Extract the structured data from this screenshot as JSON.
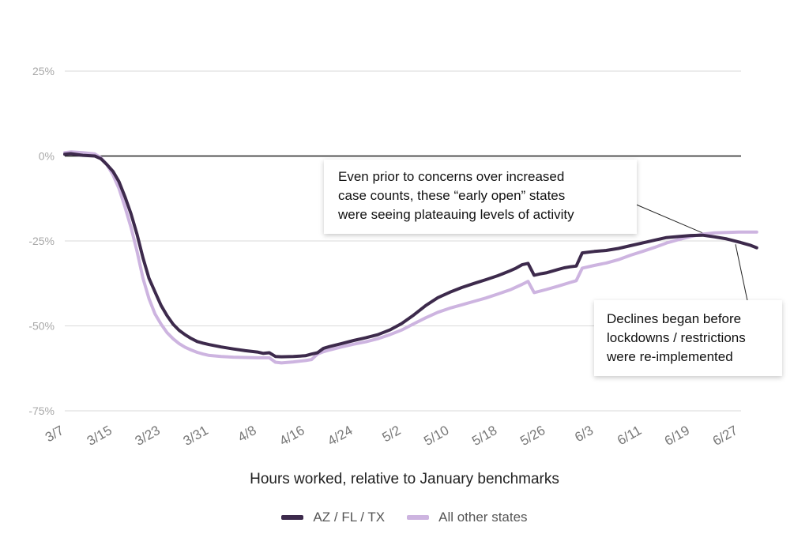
{
  "chart_data": {
    "type": "line",
    "xlabel": "Hours worked, relative to January benchmarks",
    "x_ticks": [
      "3/7",
      "3/15",
      "3/23",
      "3/31",
      "4/8",
      "4/16",
      "4/24",
      "5/2",
      "5/10",
      "5/18",
      "5/26",
      "6/3",
      "6/11",
      "6/19",
      "6/27"
    ],
    "y_ticks": [
      25,
      0,
      -25,
      -50,
      -75
    ],
    "y_tick_labels": [
      "25%",
      "0%",
      "-25%",
      "-50%",
      "-75%"
    ],
    "ylim": [
      -75,
      25
    ],
    "grid": true,
    "legend_position": "bottom",
    "series": [
      {
        "name": "AZ / FL / TX",
        "color": "#3d2a4c",
        "points": [
          [
            0,
            0.5
          ],
          [
            1,
            0.7
          ],
          [
            3,
            0.2
          ],
          [
            5,
            0
          ],
          [
            6,
            -0.8
          ],
          [
            7,
            -2.5
          ],
          [
            8,
            -4.5
          ],
          [
            9,
            -7.5
          ],
          [
            10,
            -12
          ],
          [
            11,
            -17
          ],
          [
            12,
            -23
          ],
          [
            13,
            -30
          ],
          [
            14,
            -36
          ],
          [
            15,
            -40
          ],
          [
            16,
            -44
          ],
          [
            17,
            -47
          ],
          [
            18,
            -49.5
          ],
          [
            19,
            -51.3
          ],
          [
            20,
            -52.6
          ],
          [
            21,
            -53.7
          ],
          [
            22,
            -54.6
          ],
          [
            23,
            -55.1
          ],
          [
            24,
            -55.5
          ],
          [
            26,
            -56.2
          ],
          [
            28,
            -56.8
          ],
          [
            30,
            -57.3
          ],
          [
            32,
            -57.7
          ],
          [
            33,
            -58.1
          ],
          [
            34,
            -57.9
          ],
          [
            35,
            -59
          ],
          [
            36,
            -59.1
          ],
          [
            38,
            -59
          ],
          [
            40,
            -58.8
          ],
          [
            41,
            -58.3
          ],
          [
            42,
            -57.9
          ],
          [
            43,
            -56.6
          ],
          [
            44,
            -56.1
          ],
          [
            46,
            -55.2
          ],
          [
            48,
            -54.3
          ],
          [
            50,
            -53.5
          ],
          [
            52,
            -52.6
          ],
          [
            54,
            -51.2
          ],
          [
            56,
            -49.3
          ],
          [
            58,
            -46.8
          ],
          [
            60,
            -44
          ],
          [
            62,
            -41.7
          ],
          [
            64,
            -40.1
          ],
          [
            66,
            -38.7
          ],
          [
            68,
            -37.5
          ],
          [
            70,
            -36.4
          ],
          [
            72,
            -35.2
          ],
          [
            74,
            -33.8
          ],
          [
            75,
            -33
          ],
          [
            76,
            -32
          ],
          [
            77,
            -31.6
          ],
          [
            78,
            -35.1
          ],
          [
            79,
            -34.7
          ],
          [
            80,
            -34.4
          ],
          [
            82,
            -33.4
          ],
          [
            83,
            -32.9
          ],
          [
            84,
            -32.6
          ],
          [
            85,
            -32.4
          ],
          [
            86,
            -28.5
          ],
          [
            88,
            -28.1
          ],
          [
            90,
            -27.8
          ],
          [
            92,
            -27.2
          ],
          [
            94,
            -26.4
          ],
          [
            96,
            -25.6
          ],
          [
            98,
            -24.8
          ],
          [
            100,
            -24
          ],
          [
            102,
            -23.7
          ],
          [
            104,
            -23.4
          ],
          [
            106,
            -23.3
          ],
          [
            108,
            -23.8
          ],
          [
            110,
            -24.4
          ],
          [
            112,
            -25.3
          ],
          [
            114,
            -26.3
          ],
          [
            115,
            -27
          ]
        ]
      },
      {
        "name": "All other states",
        "color": "#cdb4e0",
        "points": [
          [
            0,
            1
          ],
          [
            1,
            1.2
          ],
          [
            3,
            1
          ],
          [
            5,
            0.6
          ],
          [
            6,
            -0.5
          ],
          [
            7,
            -2.5
          ],
          [
            8,
            -5.5
          ],
          [
            9,
            -9.5
          ],
          [
            10,
            -15
          ],
          [
            11,
            -21
          ],
          [
            12,
            -28
          ],
          [
            13,
            -36
          ],
          [
            14,
            -42
          ],
          [
            15,
            -46.5
          ],
          [
            16,
            -49.5
          ],
          [
            17,
            -52
          ],
          [
            18,
            -53.8
          ],
          [
            19,
            -55.2
          ],
          [
            20,
            -56.3
          ],
          [
            21,
            -57.1
          ],
          [
            22,
            -57.8
          ],
          [
            23,
            -58.3
          ],
          [
            24,
            -58.7
          ],
          [
            26,
            -59
          ],
          [
            28,
            -59.2
          ],
          [
            30,
            -59.3
          ],
          [
            32,
            -59.4
          ],
          [
            34,
            -59.4
          ],
          [
            35,
            -60.7
          ],
          [
            36,
            -60.9
          ],
          [
            38,
            -60.6
          ],
          [
            40,
            -60.2
          ],
          [
            41,
            -59.9
          ],
          [
            42,
            -58.3
          ],
          [
            43,
            -57.6
          ],
          [
            44,
            -57.1
          ],
          [
            46,
            -56.2
          ],
          [
            48,
            -55.4
          ],
          [
            50,
            -54.7
          ],
          [
            52,
            -53.8
          ],
          [
            54,
            -52.6
          ],
          [
            56,
            -51.2
          ],
          [
            58,
            -49.4
          ],
          [
            60,
            -47.6
          ],
          [
            62,
            -46
          ],
          [
            64,
            -44.8
          ],
          [
            66,
            -43.8
          ],
          [
            68,
            -42.8
          ],
          [
            70,
            -41.8
          ],
          [
            72,
            -40.6
          ],
          [
            74,
            -39.4
          ],
          [
            76,
            -37.8
          ],
          [
            77,
            -36.9
          ],
          [
            78,
            -40.2
          ],
          [
            80,
            -39.3
          ],
          [
            82,
            -38.3
          ],
          [
            84,
            -37.2
          ],
          [
            85,
            -36.7
          ],
          [
            86,
            -33
          ],
          [
            88,
            -32.2
          ],
          [
            90,
            -31.5
          ],
          [
            92,
            -30.5
          ],
          [
            94,
            -29.2
          ],
          [
            96,
            -28.1
          ],
          [
            98,
            -26.9
          ],
          [
            100,
            -25.6
          ],
          [
            102,
            -24.6
          ],
          [
            104,
            -23.7
          ],
          [
            106,
            -23
          ],
          [
            108,
            -22.6
          ],
          [
            110,
            -22.5
          ],
          [
            112,
            -22.4
          ],
          [
            114,
            -22.4
          ],
          [
            115,
            -22.4
          ]
        ]
      }
    ],
    "annotations": [
      {
        "lines": [
          "Even prior to concerns over increased",
          "case counts, these “early open” states",
          "were seeing plateauing levels of activity"
        ],
        "points_to": [
          106,
          -23.3
        ]
      },
      {
        "lines": [
          "Declines began before",
          "lockdowns / restrictions",
          "were re-implemented"
        ],
        "points_to": [
          112,
          -25.3
        ]
      }
    ]
  }
}
